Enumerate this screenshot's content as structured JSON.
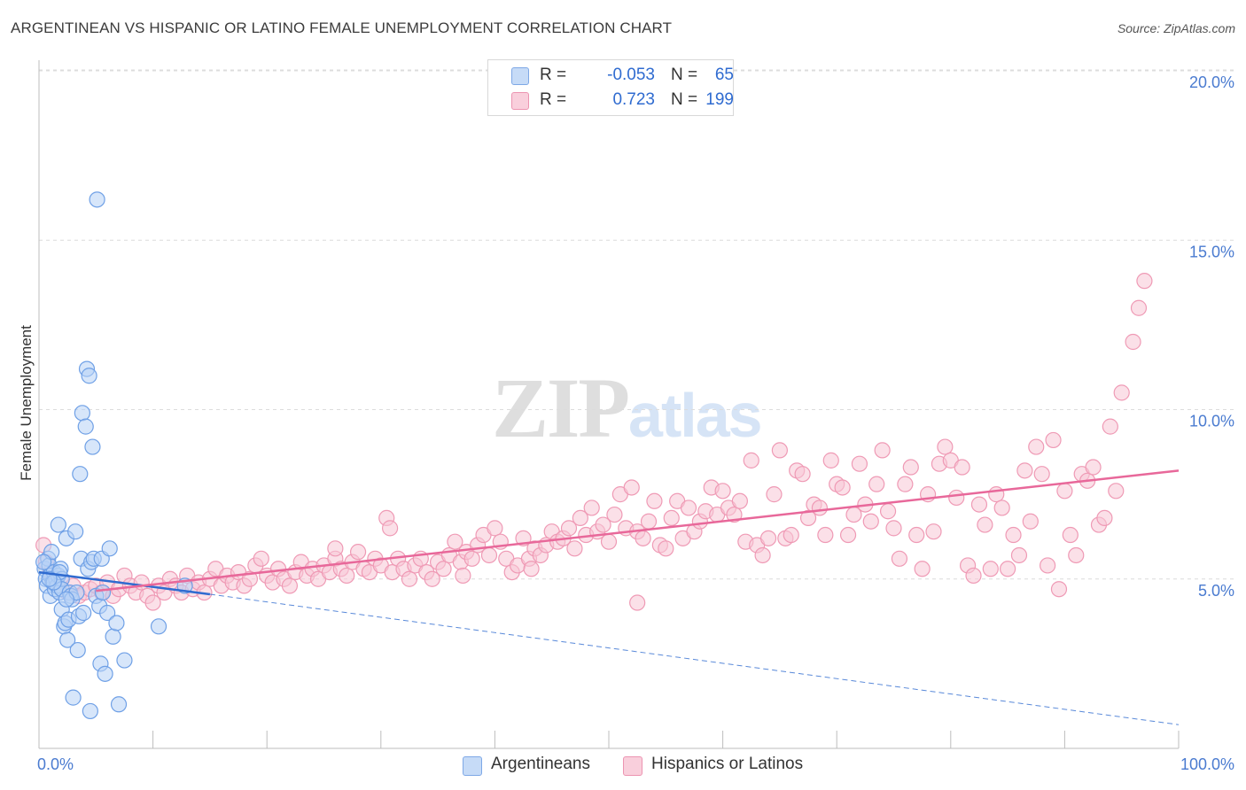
{
  "header": {
    "title": "ARGENTINEAN VS HISPANIC OR LATINO FEMALE UNEMPLOYMENT CORRELATION CHART",
    "source": "Source: ZipAtlas.com"
  },
  "watermark": {
    "zip": "ZIP",
    "atlas": "atlas"
  },
  "legend": {
    "rows": [
      {
        "r_label": "R =",
        "r_value": "-0.053",
        "n_label": "N =",
        "n_value": "65",
        "color": "#a9c8f2"
      },
      {
        "r_label": "R =",
        "r_value": "0.723",
        "n_label": "N =",
        "n_value": "199",
        "color": "#f5b9cb"
      }
    ]
  },
  "bottom_legend": [
    {
      "label": "Argentineans",
      "color": "#a9c8f2"
    },
    {
      "label": "Hispanics or Latinos",
      "color": "#f5b9cb"
    }
  ],
  "chart_data": {
    "type": "scatter",
    "title": "ARGENTINEAN VS HISPANIC OR LATINO FEMALE UNEMPLOYMENT CORRELATION CHART",
    "ylabel": "Female Unemployment",
    "xlabel": "",
    "xlim": [
      0,
      100
    ],
    "ylim": [
      0,
      20.5
    ],
    "y_ticks": [
      {
        "value": 5,
        "label": "5.0%"
      },
      {
        "value": 10,
        "label": "10.0%"
      },
      {
        "value": 15,
        "label": "15.0%"
      },
      {
        "value": 20,
        "label": "20.0%"
      }
    ],
    "x_tick_labels": [
      {
        "value": 0,
        "label": "0.0%"
      },
      {
        "value": 100,
        "label": "100.0%"
      }
    ],
    "grid": true,
    "legend_position": "top-center",
    "series": [
      {
        "name": "Argentineans",
        "color": "#6fa0e6",
        "fill": "#b7d1f5",
        "line_color": "#2f6bd0",
        "trend": {
          "x": [
            0,
            15
          ],
          "y": [
            5.2,
            4.55
          ],
          "dashed_extension": {
            "x": [
              15,
              100
            ],
            "y": [
              4.55,
              0.7
            ]
          }
        },
        "points": [
          [
            0.5,
            5.3
          ],
          [
            0.6,
            5.0
          ],
          [
            0.7,
            4.8
          ],
          [
            0.8,
            5.6
          ],
          [
            0.9,
            5.4
          ],
          [
            1.0,
            5.1
          ],
          [
            1.0,
            4.5
          ],
          [
            1.2,
            4.9
          ],
          [
            1.3,
            5.2
          ],
          [
            1.4,
            4.7
          ],
          [
            1.5,
            5.0
          ],
          [
            1.6,
            4.8
          ],
          [
            1.7,
            5.1
          ],
          [
            1.8,
            4.6
          ],
          [
            1.9,
            5.3
          ],
          [
            2.0,
            5.0
          ],
          [
            1.1,
            5.8
          ],
          [
            0.4,
            5.5
          ],
          [
            2.0,
            4.7
          ],
          [
            1.8,
            5.2
          ],
          [
            1.7,
            6.6
          ],
          [
            2.0,
            4.1
          ],
          [
            2.2,
            3.6
          ],
          [
            2.3,
            3.7
          ],
          [
            2.4,
            6.2
          ],
          [
            2.5,
            3.2
          ],
          [
            2.6,
            3.8
          ],
          [
            2.7,
            4.6
          ],
          [
            2.8,
            4.5
          ],
          [
            2.9,
            4.4
          ],
          [
            3.0,
            1.5
          ],
          [
            3.2,
            6.4
          ],
          [
            3.3,
            4.6
          ],
          [
            3.4,
            2.9
          ],
          [
            3.5,
            3.9
          ],
          [
            3.6,
            8.1
          ],
          [
            3.7,
            5.6
          ],
          [
            3.8,
            9.9
          ],
          [
            3.9,
            4.0
          ],
          [
            4.1,
            9.5
          ],
          [
            4.2,
            11.2
          ],
          [
            4.3,
            5.3
          ],
          [
            4.4,
            11.0
          ],
          [
            4.5,
            1.1
          ],
          [
            4.6,
            5.5
          ],
          [
            4.7,
            8.9
          ],
          [
            4.8,
            5.6
          ],
          [
            5.0,
            4.5
          ],
          [
            5.1,
            16.2
          ],
          [
            5.3,
            4.2
          ],
          [
            5.4,
            2.5
          ],
          [
            5.5,
            5.6
          ],
          [
            5.6,
            4.6
          ],
          [
            5.8,
            2.2
          ],
          [
            6.0,
            4.0
          ],
          [
            6.2,
            5.9
          ],
          [
            6.5,
            3.3
          ],
          [
            6.8,
            3.7
          ],
          [
            7.0,
            1.3
          ],
          [
            7.5,
            2.6
          ],
          [
            10.5,
            3.6
          ],
          [
            12.8,
            4.8
          ],
          [
            1.3,
            4.9
          ],
          [
            0.9,
            5.0
          ],
          [
            2.4,
            4.4
          ]
        ]
      },
      {
        "name": "Hispanics or Latinos",
        "color": "#ef9ab5",
        "fill": "#f8c7d6",
        "line_color": "#e8689a",
        "trend": {
          "x": [
            5,
            100
          ],
          "y": [
            4.65,
            8.2
          ]
        },
        "points": [
          [
            0.4,
            6.0
          ],
          [
            0.6,
            5.5
          ],
          [
            1.0,
            5.2
          ],
          [
            1.5,
            4.9
          ],
          [
            2.0,
            5.0
          ],
          [
            2.5,
            4.6
          ],
          [
            3.0,
            4.8
          ],
          [
            3.5,
            4.5
          ],
          [
            4.0,
            4.6
          ],
          [
            4.5,
            4.7
          ],
          [
            5.0,
            4.8
          ],
          [
            5.5,
            4.6
          ],
          [
            6.0,
            4.9
          ],
          [
            6.5,
            4.5
          ],
          [
            7.0,
            4.7
          ],
          [
            7.5,
            5.1
          ],
          [
            8.0,
            4.8
          ],
          [
            8.5,
            4.6
          ],
          [
            9.0,
            4.9
          ],
          [
            9.5,
            4.5
          ],
          [
            10.0,
            4.3
          ],
          [
            10.5,
            4.8
          ],
          [
            11.0,
            4.6
          ],
          [
            11.5,
            5.0
          ],
          [
            12.0,
            4.8
          ],
          [
            12.5,
            4.6
          ],
          [
            13.0,
            5.1
          ],
          [
            13.5,
            4.7
          ],
          [
            14.0,
            4.9
          ],
          [
            14.5,
            4.6
          ],
          [
            15.0,
            5.0
          ],
          [
            15.5,
            5.3
          ],
          [
            16.0,
            4.8
          ],
          [
            16.5,
            5.1
          ],
          [
            17.0,
            4.9
          ],
          [
            17.5,
            5.2
          ],
          [
            18.0,
            4.8
          ],
          [
            18.5,
            5.0
          ],
          [
            19.0,
            5.4
          ],
          [
            19.5,
            5.6
          ],
          [
            20.0,
            5.1
          ],
          [
            20.5,
            4.9
          ],
          [
            21.0,
            5.3
          ],
          [
            21.5,
            5.0
          ],
          [
            22.0,
            4.8
          ],
          [
            22.5,
            5.2
          ],
          [
            23.0,
            5.5
          ],
          [
            23.5,
            5.1
          ],
          [
            24.0,
            5.3
          ],
          [
            24.5,
            5.0
          ],
          [
            25.0,
            5.4
          ],
          [
            25.5,
            5.2
          ],
          [
            26.0,
            5.6
          ],
          [
            26.5,
            5.3
          ],
          [
            27.0,
            5.1
          ],
          [
            27.5,
            5.5
          ],
          [
            28.0,
            5.8
          ],
          [
            28.5,
            5.3
          ],
          [
            29.0,
            5.2
          ],
          [
            29.5,
            5.6
          ],
          [
            30.0,
            5.4
          ],
          [
            30.5,
            6.8
          ],
          [
            30.8,
            6.5
          ],
          [
            31.0,
            5.2
          ],
          [
            31.5,
            5.6
          ],
          [
            32.0,
            5.3
          ],
          [
            32.5,
            5.0
          ],
          [
            33.0,
            5.4
          ],
          [
            33.5,
            5.6
          ],
          [
            34.0,
            5.2
          ],
          [
            34.5,
            5.0
          ],
          [
            35.0,
            5.5
          ],
          [
            35.5,
            5.3
          ],
          [
            36.0,
            5.7
          ],
          [
            36.5,
            6.1
          ],
          [
            37.0,
            5.5
          ],
          [
            37.5,
            5.8
          ],
          [
            38.0,
            5.6
          ],
          [
            38.5,
            6.0
          ],
          [
            39.0,
            6.3
          ],
          [
            39.5,
            5.7
          ],
          [
            40.0,
            6.5
          ],
          [
            40.5,
            6.1
          ],
          [
            41.0,
            5.6
          ],
          [
            41.5,
            5.2
          ],
          [
            42.0,
            5.4
          ],
          [
            42.5,
            6.2
          ],
          [
            43.0,
            5.6
          ],
          [
            43.5,
            5.9
          ],
          [
            44.0,
            5.7
          ],
          [
            44.5,
            6.0
          ],
          [
            45.0,
            6.4
          ],
          [
            45.5,
            6.1
          ],
          [
            46.0,
            6.2
          ],
          [
            46.5,
            6.5
          ],
          [
            47.0,
            5.9
          ],
          [
            47.5,
            6.8
          ],
          [
            48.0,
            6.3
          ],
          [
            48.5,
            7.1
          ],
          [
            49.0,
            6.4
          ],
          [
            49.5,
            6.6
          ],
          [
            50.0,
            6.1
          ],
          [
            50.5,
            6.9
          ],
          [
            51.0,
            7.5
          ],
          [
            51.5,
            6.5
          ],
          [
            52.0,
            7.7
          ],
          [
            52.5,
            6.4
          ],
          [
            53.0,
            6.2
          ],
          [
            53.5,
            6.7
          ],
          [
            54.0,
            7.3
          ],
          [
            54.5,
            6.0
          ],
          [
            55.0,
            5.9
          ],
          [
            55.5,
            6.8
          ],
          [
            56.0,
            7.3
          ],
          [
            56.5,
            6.2
          ],
          [
            57.0,
            7.1
          ],
          [
            57.5,
            6.4
          ],
          [
            58.0,
            6.7
          ],
          [
            58.5,
            7.0
          ],
          [
            59.0,
            7.7
          ],
          [
            59.5,
            6.9
          ],
          [
            60.0,
            7.6
          ],
          [
            60.5,
            7.1
          ],
          [
            61.0,
            6.9
          ],
          [
            61.5,
            7.3
          ],
          [
            62.0,
            6.1
          ],
          [
            62.5,
            8.5
          ],
          [
            63.0,
            6.0
          ],
          [
            63.5,
            5.7
          ],
          [
            64.0,
            6.2
          ],
          [
            64.5,
            7.5
          ],
          [
            65.0,
            8.8
          ],
          [
            65.5,
            6.2
          ],
          [
            66.0,
            6.3
          ],
          [
            66.5,
            8.2
          ],
          [
            67.0,
            8.1
          ],
          [
            67.5,
            6.8
          ],
          [
            68.0,
            7.2
          ],
          [
            68.5,
            7.1
          ],
          [
            69.0,
            6.3
          ],
          [
            69.5,
            8.5
          ],
          [
            70.0,
            7.8
          ],
          [
            70.5,
            7.7
          ],
          [
            71.0,
            6.3
          ],
          [
            71.5,
            6.9
          ],
          [
            72.0,
            8.4
          ],
          [
            72.5,
            7.2
          ],
          [
            73.0,
            6.7
          ],
          [
            73.5,
            7.8
          ],
          [
            74.0,
            8.8
          ],
          [
            74.5,
            7.0
          ],
          [
            75.0,
            6.5
          ],
          [
            75.5,
            5.6
          ],
          [
            76.0,
            7.8
          ],
          [
            76.5,
            8.3
          ],
          [
            77.0,
            6.3
          ],
          [
            77.5,
            5.3
          ],
          [
            78.0,
            7.5
          ],
          [
            78.5,
            6.4
          ],
          [
            79.0,
            8.4
          ],
          [
            79.5,
            8.9
          ],
          [
            80.0,
            8.5
          ],
          [
            80.5,
            7.4
          ],
          [
            81.0,
            8.3
          ],
          [
            81.5,
            5.4
          ],
          [
            82.0,
            5.1
          ],
          [
            82.5,
            7.2
          ],
          [
            83.0,
            6.6
          ],
          [
            83.5,
            5.3
          ],
          [
            84.0,
            7.5
          ],
          [
            84.5,
            7.1
          ],
          [
            85.0,
            5.3
          ],
          [
            85.5,
            6.3
          ],
          [
            86.0,
            5.7
          ],
          [
            86.5,
            8.2
          ],
          [
            87.0,
            6.7
          ],
          [
            87.5,
            8.9
          ],
          [
            88.0,
            8.1
          ],
          [
            88.5,
            5.4
          ],
          [
            89.0,
            9.1
          ],
          [
            89.5,
            4.7
          ],
          [
            90.0,
            7.6
          ],
          [
            90.5,
            6.3
          ],
          [
            91.0,
            5.7
          ],
          [
            91.5,
            8.1
          ],
          [
            92.0,
            7.9
          ],
          [
            92.5,
            8.3
          ],
          [
            93.0,
            6.6
          ],
          [
            93.5,
            6.8
          ],
          [
            94.0,
            9.5
          ],
          [
            94.5,
            7.6
          ],
          [
            95.0,
            10.5
          ],
          [
            96.0,
            12.0
          ],
          [
            96.5,
            13.0
          ],
          [
            97.0,
            13.8
          ],
          [
            26.0,
            5.9
          ],
          [
            52.5,
            4.3
          ],
          [
            43.2,
            5.3
          ],
          [
            37.2,
            5.1
          ]
        ]
      }
    ]
  }
}
